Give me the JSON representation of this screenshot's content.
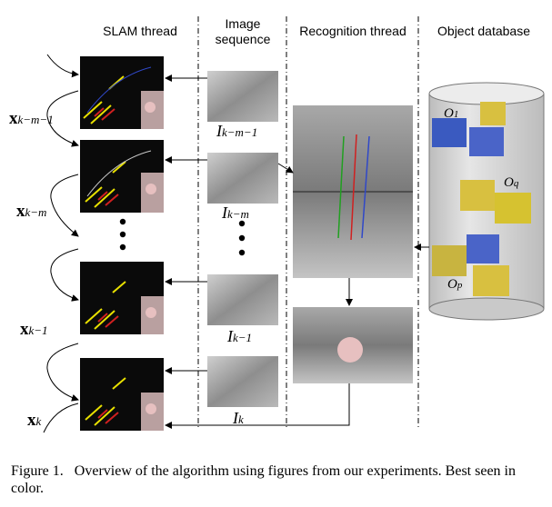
{
  "headers": {
    "slam": "SLAM thread",
    "image_seq": [
      "Image",
      "sequence"
    ],
    "recognition": "Recognition thread",
    "database": "Object database"
  },
  "states": [
    {
      "base": "x",
      "sub": "k−m−1"
    },
    {
      "base": "x",
      "sub": "k−m"
    },
    {
      "base": "x",
      "sub": "k−1"
    },
    {
      "base": "x",
      "sub": "k"
    }
  ],
  "images": [
    {
      "base": "I",
      "sub": "k−m−1"
    },
    {
      "base": "I",
      "sub": "k−m"
    },
    {
      "base": "I",
      "sub": "k−1"
    },
    {
      "base": "I",
      "sub": "k"
    }
  ],
  "objects": [
    {
      "base": "O",
      "sub": "1"
    },
    {
      "base": "O",
      "sub": "q"
    },
    {
      "base": "O",
      "sub": "p"
    }
  ],
  "caption": {
    "label": "Figure 1.",
    "text": "Overview of the algorithm using figures from our experiments. Best seen in color."
  },
  "colors": {
    "slam_bg": "#0a0a0a",
    "photo_gray": "#9a9a9a",
    "database_fill": "#d9d9d9",
    "accent_yellow": "#e8e000",
    "accent_red": "#d02020",
    "accent_blue": "#3048c8"
  }
}
